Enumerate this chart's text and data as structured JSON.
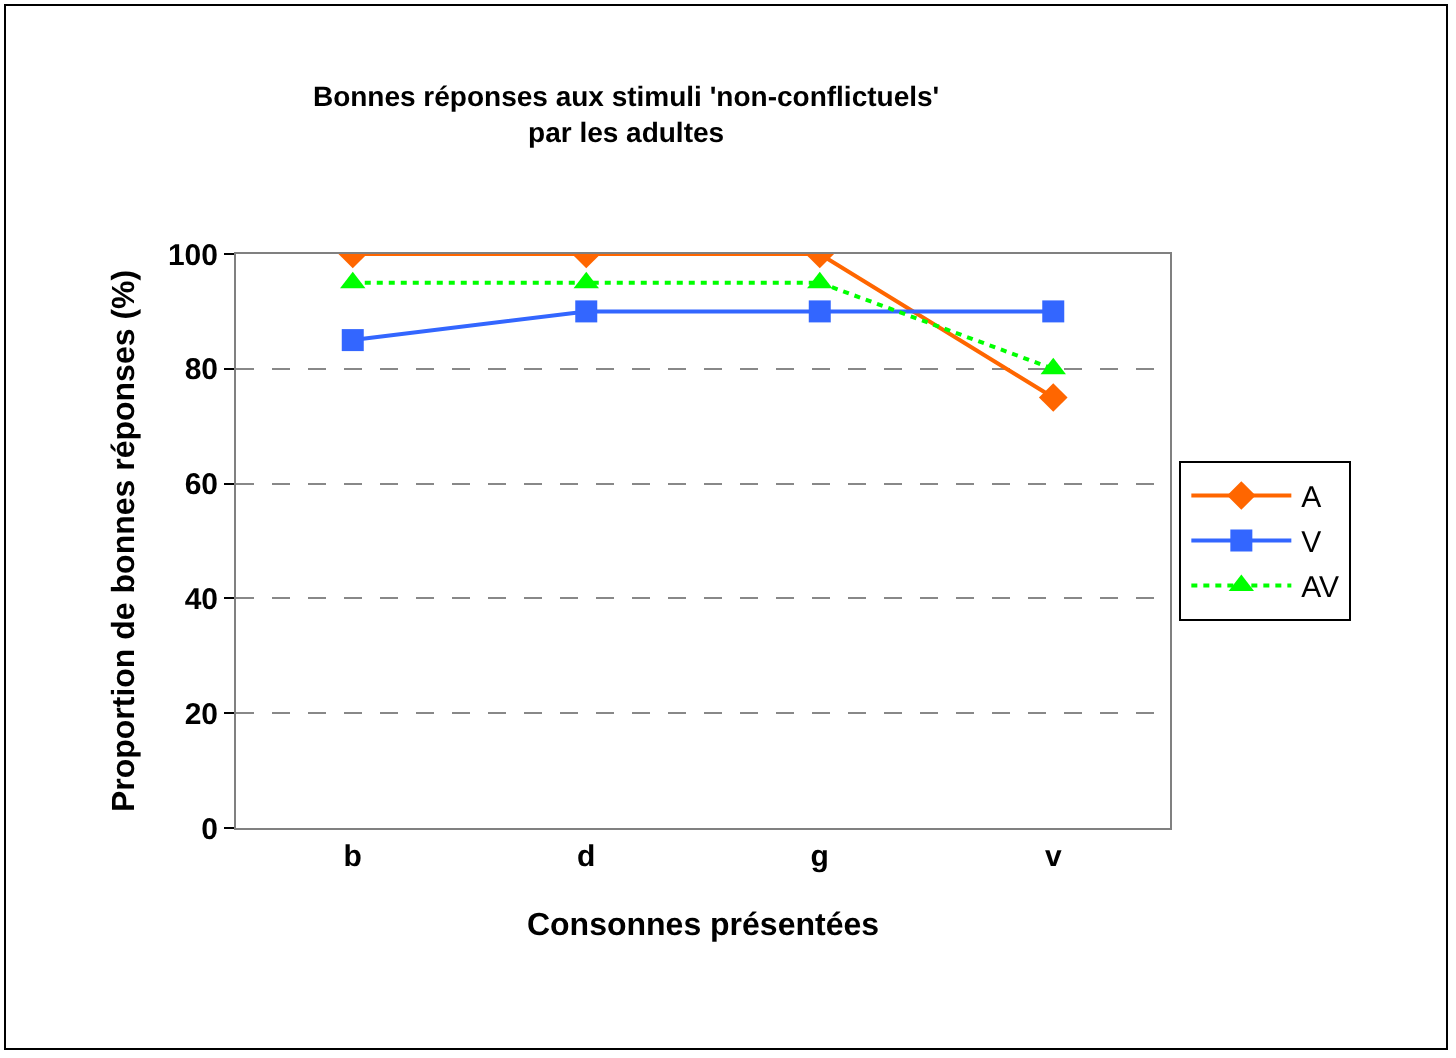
{
  "chart_data": {
    "type": "line",
    "title": "Bonnes réponses aux stimuli 'non-conflictuels'\npar les adultes",
    "xlabel": "Consonnes présentées",
    "ylabel": "Proportion de bonnes réponses (%)",
    "categories": [
      "b",
      "d",
      "g",
      "v"
    ],
    "ylim": [
      0,
      100
    ],
    "yticks": [
      0,
      20,
      40,
      60,
      80,
      100
    ],
    "grid": "y",
    "legend": "right",
    "series": [
      {
        "name": "A",
        "color": "#ff6600",
        "values": [
          100,
          100,
          100,
          75
        ],
        "marker": "diamond",
        "line_style": "solid"
      },
      {
        "name": "V",
        "color": "#3366ff",
        "values": [
          85,
          90,
          90,
          90
        ],
        "marker": "square",
        "line_style": "solid"
      },
      {
        "name": "AV",
        "color": "#00ff00",
        "values": [
          95,
          95,
          95,
          80
        ],
        "marker": "triangle",
        "line_style": "dotted"
      }
    ]
  }
}
